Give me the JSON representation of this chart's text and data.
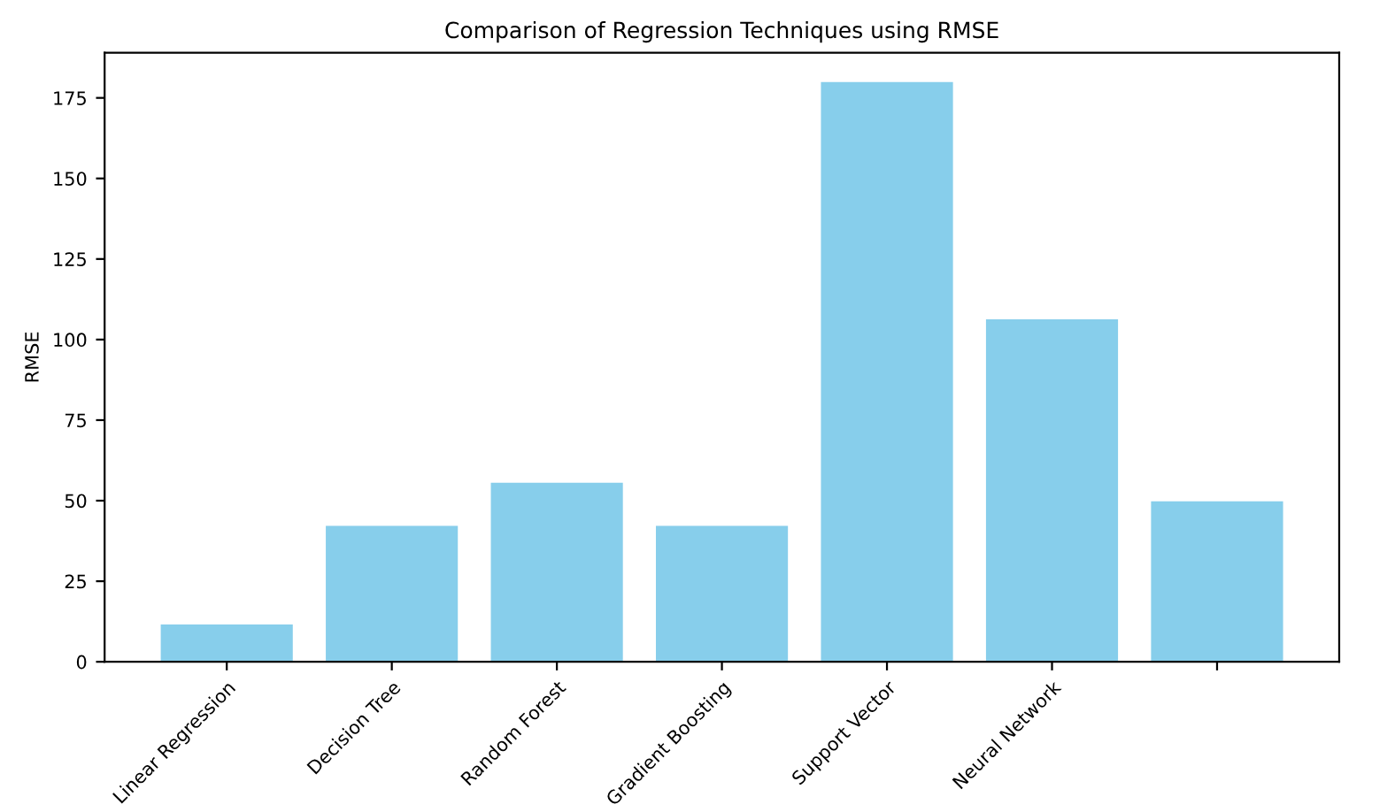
{
  "chart_data": {
    "type": "bar",
    "title": "Comparison of Regression Techniques using RMSE",
    "ylabel": "RMSE",
    "categories": [
      "Linear Regression",
      "Decision Tree",
      "Random Forest",
      "Gradient Boosting",
      "Support Vector",
      "Neural Network",
      null
    ],
    "values": [
      11.6,
      42.2,
      55.6,
      42.2,
      179.9,
      106.3,
      49.8
    ],
    "color": "#87ceeb",
    "ylim": [
      0,
      189
    ],
    "yticks": [
      0,
      25,
      50,
      75,
      100,
      125,
      150,
      175
    ],
    "grid": false
  }
}
